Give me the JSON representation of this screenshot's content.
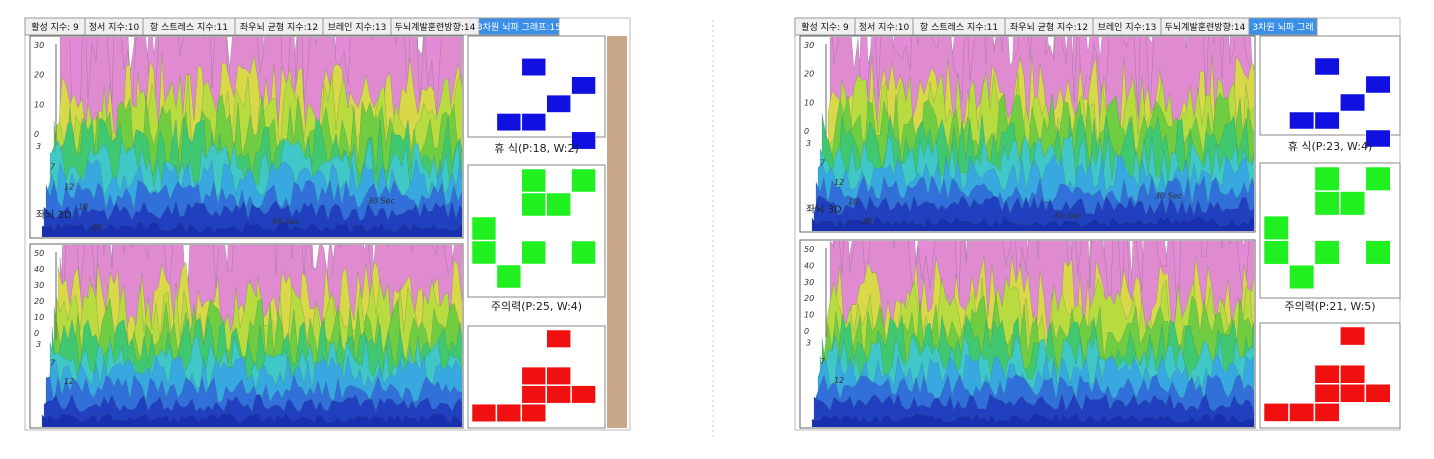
{
  "panels": [
    {
      "tabs": [
        "활성 지수: 9",
        "정서 지수:10",
        "항 스트레스 지수:11",
        "좌우뇌 균형 지수:12",
        "브레인 지수:13",
        "두뇌계발훈련방향:14",
        "3차원 뇌파 그래프:15"
      ],
      "graphs": [
        {
          "y_ticks": [
            "30",
            "20",
            "10",
            "0"
          ],
          "depth_ticks": [
            "3",
            "7",
            "12",
            "18",
            "28"
          ],
          "time_labels": [
            "30 Sec",
            "60 Sec"
          ],
          "label": "좌뇌 3D"
        },
        {
          "y_ticks": [
            "50",
            "40",
            "30",
            "20",
            "10",
            "0"
          ],
          "depth_ticks": [
            "3",
            "7",
            "12"
          ],
          "time_labels": []
        }
      ],
      "captions": [
        "휴 식(P:18, W:2)",
        "주의력(P:25, W:4)"
      ]
    },
    {
      "tabs": [
        "활성 지수: 9",
        "정서 지수:10",
        "항 스트레스 지수:11",
        "좌우뇌 균형 지수:12",
        "브레인 지수:13",
        "두뇌계발훈련방향:14",
        "3차원 뇌파 그래"
      ],
      "graphs": [
        {
          "y_ticks": [
            "30",
            "20",
            "10",
            "0"
          ],
          "depth_ticks": [
            "3",
            "7",
            "12",
            "18",
            "28"
          ],
          "time_labels": [
            "30 Sec",
            "60 Sec"
          ],
          "label": "좌뇌 3D"
        },
        {
          "y_ticks": [
            "50",
            "40",
            "30",
            "20",
            "10",
            "0"
          ],
          "depth_ticks": [
            "3",
            "7",
            "12"
          ],
          "time_labels": []
        }
      ],
      "captions": [
        "휴 식(P:23, W:4)",
        "주의력(P:21, W:5)"
      ]
    }
  ]
}
